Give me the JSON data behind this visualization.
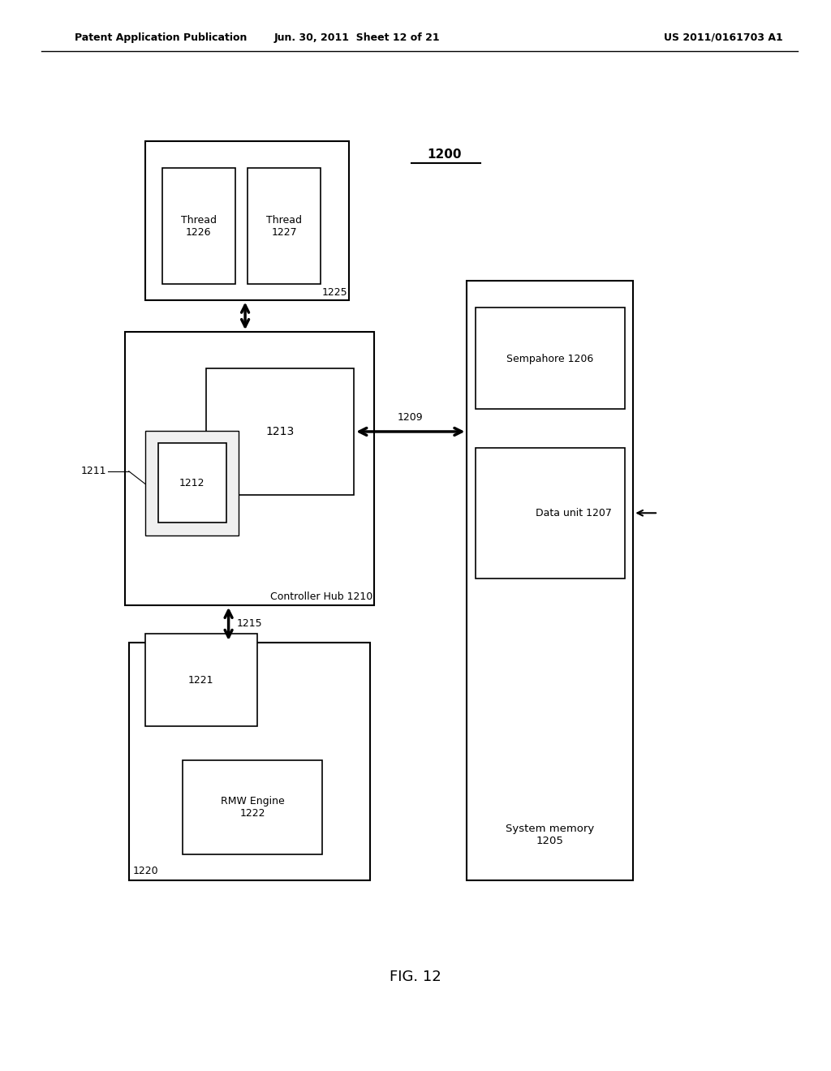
{
  "bg_color": "#ffffff",
  "header_left": "Patent Application Publication",
  "header_mid": "Jun. 30, 2011  Sheet 12 of 21",
  "header_right": "US 2011/0161703 A1",
  "fig_label": "FIG. 12",
  "diagram_label": "1200"
}
